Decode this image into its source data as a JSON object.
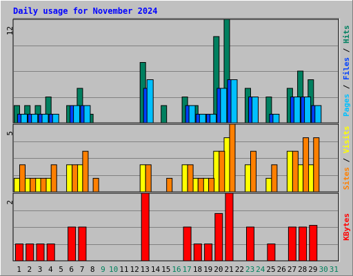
{
  "chart_data": {
    "type": "bar",
    "title": "Daily usage for November 2024",
    "days": [
      "1",
      "2",
      "3",
      "4",
      "5",
      "6",
      "7",
      "8",
      "9",
      "10",
      "11",
      "12",
      "13",
      "14",
      "15",
      "16",
      "17",
      "18",
      "19",
      "20",
      "21",
      "22",
      "23",
      "24",
      "25",
      "26",
      "27",
      "28",
      "29",
      "30",
      "31"
    ],
    "weekend_days": [
      "9",
      "10",
      "16",
      "17",
      "23",
      "24",
      "30",
      "31"
    ],
    "panels": [
      {
        "id": "pages_files_hits",
        "ymax": 12,
        "ymax_label": "12",
        "legend": [
          {
            "text": "Pages",
            "color": "#00c0ff"
          },
          {
            "text": " / ",
            "color": "#000000"
          },
          {
            "text": "Files",
            "color": "#0040ff"
          },
          {
            "text": " / ",
            "color": "#000000"
          },
          {
            "text": "Hits",
            "color": "#008060"
          }
        ],
        "series": [
          {
            "name": "Hits",
            "color": "#008060",
            "values": [
              2,
              2,
              2,
              3,
              0,
              2,
              4,
              1,
              0,
              0,
              0,
              0,
              7,
              0,
              2,
              0,
              3,
              2,
              1,
              10,
              12,
              0,
              4,
              0,
              3,
              0,
              4,
              6,
              5,
              0,
              0
            ]
          },
          {
            "name": "Files",
            "color": "#0040ff",
            "values": [
              1,
              1,
              1,
              1,
              0,
              2,
              2,
              0,
              0,
              0,
              0,
              0,
              4,
              0,
              0,
              0,
              2,
              1,
              1,
              4,
              5,
              0,
              3,
              0,
              1,
              0,
              3,
              3,
              2,
              0,
              0
            ]
          },
          {
            "name": "Pages",
            "color": "#00c0ff",
            "values": [
              1,
              1,
              1,
              1,
              0,
              2,
              2,
              0,
              0,
              0,
              0,
              0,
              5,
              0,
              0,
              0,
              2,
              1,
              1,
              4,
              5,
              0,
              3,
              0,
              1,
              0,
              3,
              3,
              2,
              0,
              0
            ]
          }
        ]
      },
      {
        "id": "sites_visits",
        "ymax": 5,
        "ymax_label": "5",
        "legend": [
          {
            "text": "Sites",
            "color": "#ff8000"
          },
          {
            "text": " / ",
            "color": "#000000"
          },
          {
            "text": "Visits",
            "color": "#ffff00"
          }
        ],
        "series": [
          {
            "name": "Visits",
            "color": "#ffff00",
            "values": [
              1,
              1,
              1,
              1,
              0,
              2,
              2,
              0,
              0,
              0,
              0,
              0,
              2,
              0,
              0,
              0,
              2,
              1,
              1,
              3,
              4,
              0,
              2,
              0,
              1,
              0,
              3,
              2,
              2,
              0,
              0
            ]
          },
          {
            "name": "Sites",
            "color": "#ff8000",
            "values": [
              2,
              1,
              1,
              2,
              0,
              2,
              3,
              1,
              0,
              0,
              0,
              0,
              2,
              0,
              1,
              0,
              2,
              1,
              1,
              3,
              5,
              0,
              3,
              0,
              2,
              0,
              3,
              4,
              4,
              0,
              0
            ]
          }
        ]
      },
      {
        "id": "kbytes",
        "ymax": 2,
        "ymax_label": "2",
        "legend": [
          {
            "text": "KBytes",
            "color": "#ff0000"
          }
        ],
        "series": [
          {
            "name": "KBytes",
            "color": "#ff0000",
            "values": [
              0.5,
              0.5,
              0.5,
              0.5,
              0,
              1,
              1,
              0,
              0,
              0,
              0,
              0,
              2,
              0,
              0,
              0,
              1,
              0.5,
              0.5,
              1.4,
              2,
              0,
              1,
              0,
              0.5,
              0,
              1,
              1,
              1.05,
              0,
              0
            ]
          }
        ]
      }
    ]
  }
}
